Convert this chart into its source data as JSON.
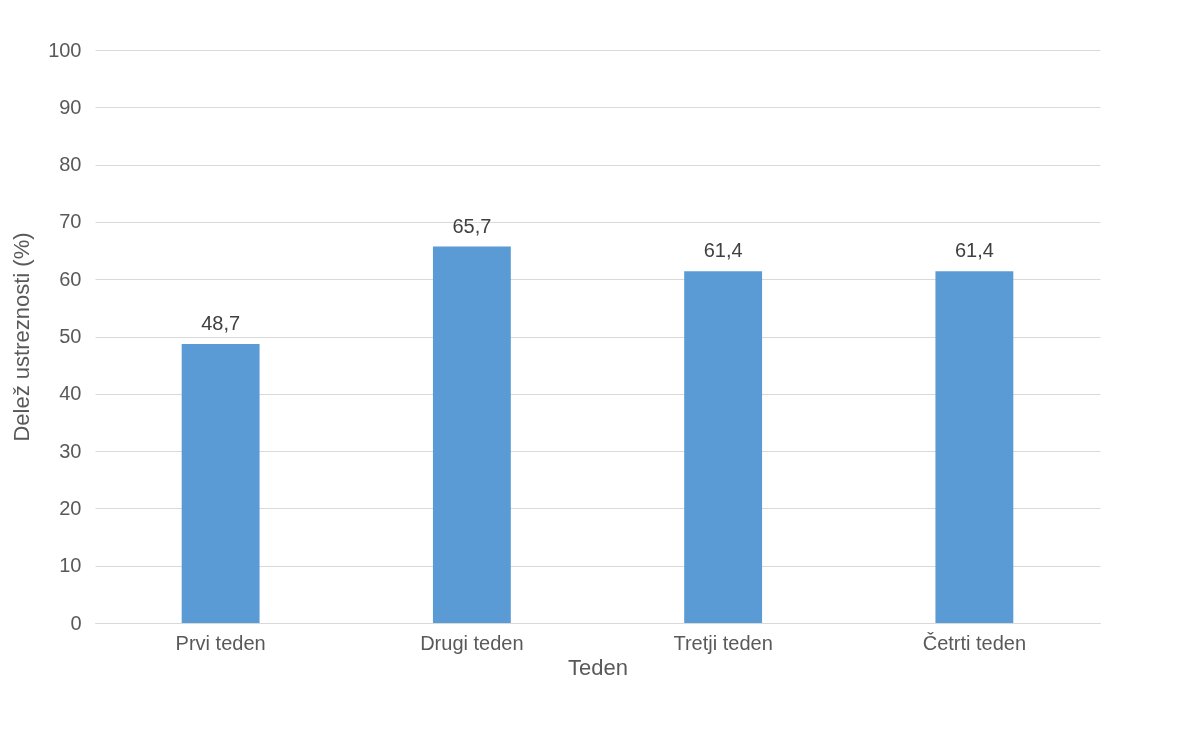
{
  "chart_data": {
    "type": "bar",
    "xlabel": "Teden",
    "ylabel": "Delež ustreznosti (%)",
    "categories": [
      "Prvi teden",
      "Drugi teden",
      "Tretji teden",
      "Četrti teden"
    ],
    "values": [
      48.7,
      65.7,
      61.4,
      61.4
    ],
    "value_labels": [
      "48,7",
      "65,7",
      "61,4",
      "61,4"
    ],
    "color": "#5b9bd5",
    "ylim": [
      0,
      100
    ],
    "yticks": [
      0,
      10,
      20,
      30,
      40,
      50,
      60,
      70,
      80,
      90,
      100
    ],
    "grid": "y"
  }
}
